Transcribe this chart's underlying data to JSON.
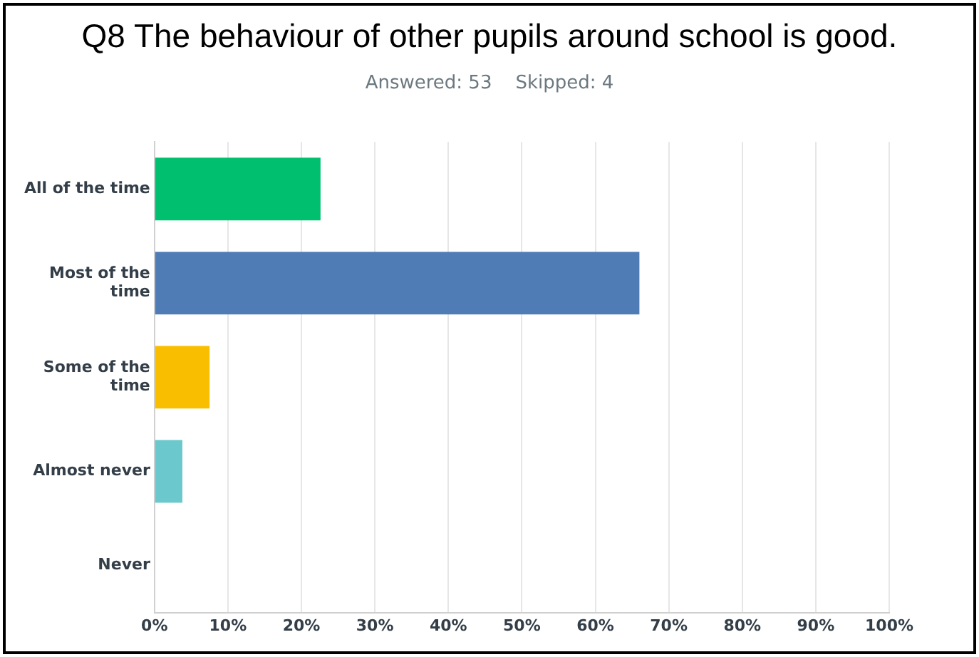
{
  "chart_data": {
    "type": "bar",
    "orientation": "horizontal",
    "title": "Q8 The behaviour of other pupils around school is good.",
    "subtitle": "Answered: 53    Skipped: 4",
    "categories": [
      "All of the time",
      "Most of the time",
      "Some of the time",
      "Almost never",
      "Never"
    ],
    "values": [
      22.6,
      66.0,
      7.5,
      3.8,
      0
    ],
    "colors": [
      "#00bf6f",
      "#507cb6",
      "#f9be00",
      "#6bc8cd",
      "#ff8b4f"
    ],
    "xlim": [
      0,
      100
    ],
    "xticks": [
      {
        "value": 0,
        "label": "0%"
      },
      {
        "value": 10,
        "label": "10%"
      },
      {
        "value": 20,
        "label": "20%"
      },
      {
        "value": 30,
        "label": "30%"
      },
      {
        "value": 40,
        "label": "40%"
      },
      {
        "value": 50,
        "label": "50%"
      },
      {
        "value": 60,
        "label": "60%"
      },
      {
        "value": 70,
        "label": "70%"
      },
      {
        "value": 80,
        "label": "80%"
      },
      {
        "value": 90,
        "label": "90%"
      },
      {
        "value": 100,
        "label": "100%"
      }
    ],
    "grid": "x",
    "legend": false
  }
}
